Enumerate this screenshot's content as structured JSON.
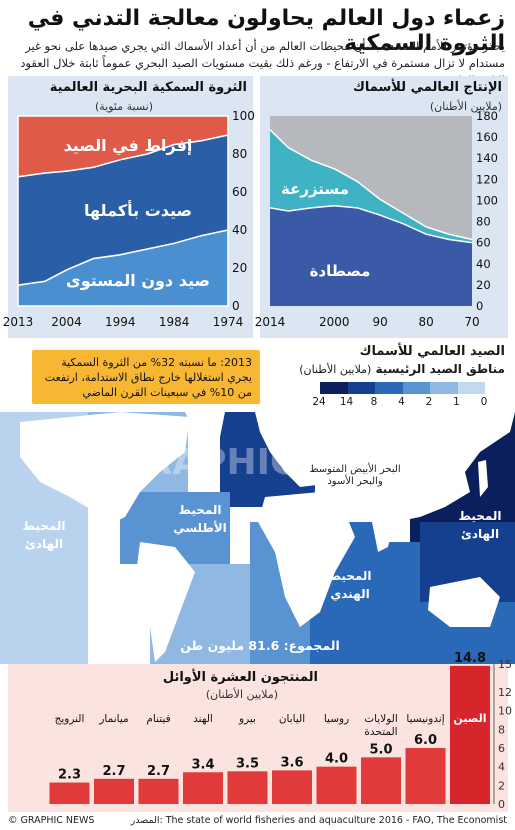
{
  "header": {
    "title": "زعماء دول العالم يحاولون معالجة التدني في الثروة السمكية",
    "subtitle": "يحذر مؤتمر للأمم المتحدة بشأن محيطات العالم من أن أعداد الأسماك التي يجري صيدها على نحو غير مستدام لا تزال مستمرة في الارتفاع - ورغم ذلك بقيت مستويات الصيد البحري عموماً ثابتة خلال العقود الثلاثة الماضية"
  },
  "left_panel": {
    "title": "الثروة السمكية البحرية العالمية",
    "unit": "(نسبة مئوية)",
    "label_over": "إفراط في الصيد",
    "label_full": "صيدت بأكملها",
    "label_under": "صيد دون المستوى"
  },
  "right_panel": {
    "title": "الإنتاج العالمي للأسماك",
    "unit": "(ملايين الأطنان)",
    "label_farmed": "مستزرعة",
    "label_caught": "مصطادة"
  },
  "callout": {
    "text": "2013: ما نسبته 32% من الثروة السمكية يجري استغلالها خارج نطاق الاستدامة، ارتفعت من 10% في سبعينات القرن الماضي"
  },
  "map": {
    "title": "الصيد العالمي للأسماك",
    "subtitle": "مناطق الصيد الرئيسية",
    "unit": "(ملايين الأطنان)",
    "legend_ticks": [
      "24",
      "14",
      "8",
      "4",
      "2",
      "1",
      "0"
    ],
    "legend_colors": [
      "#0b1f5c",
      "#153f8f",
      "#2a68b8",
      "#5a93d2",
      "#8fb8e3",
      "#c3d9f0"
    ],
    "label_pacific_east": "المحيط\nالهادئ",
    "label_atlantic": "المحيط\nالأطلسي",
    "label_med": "البحر الأبيض المتوسط\nوالبحر الأسود",
    "label_indian": "المحيط\nالهندي",
    "label_pacific_west": "المحيط\nالهادئ",
    "total": "المجموع: 81.6 مليون طن",
    "watermark": "GRAPHIC NEWS"
  },
  "bottom_chart": {
    "title": "المنتجون العشرة الأوائل",
    "unit": "(ملايين الأطنان)"
  },
  "footer": {
    "left": "© GRAPHIC NEWS",
    "right": "المصدر: The state of world fisheries and aquaculture 2016 - FAO, The Economist"
  },
  "chart_data": [
    {
      "type": "area",
      "title": "الثروة السمكية البحرية العالمية",
      "ylabel": "(نسبة مئوية)",
      "x": [
        1974,
        1979,
        1984,
        1989,
        1994,
        1999,
        2004,
        2008,
        2013
      ],
      "x_ticks": [
        "1974",
        "1984",
        "1994",
        "2004",
        "2013"
      ],
      "ylim": [
        0,
        100
      ],
      "y_ticks": [
        "0",
        "20",
        "40",
        "60",
        "80",
        "100"
      ],
      "series": [
        {
          "name": "صيد دون المستوى",
          "values": [
            40,
            37,
            33,
            30,
            27,
            25,
            19,
            13,
            11
          ]
        },
        {
          "name": "صيدت بأكملها",
          "values": [
            50,
            50,
            52,
            50,
            50,
            48,
            52,
            57,
            57
          ]
        },
        {
          "name": "إفراط في الصيد",
          "values": [
            10,
            13,
            15,
            20,
            23,
            27,
            29,
            30,
            32
          ]
        }
      ]
    },
    {
      "type": "area",
      "title": "الإنتاج العالمي للأسماك",
      "ylabel": "(ملايين الأطنان)",
      "x": [
        1970,
        1975,
        1980,
        1985,
        1990,
        1995,
        2000,
        2005,
        2010,
        2014
      ],
      "x_ticks": [
        "70",
        "80",
        "90",
        "2000",
        "2014"
      ],
      "ylim": [
        0,
        180
      ],
      "y_ticks": [
        "0",
        "20",
        "40",
        "60",
        "80",
        "100",
        "120",
        "140",
        "160",
        "180"
      ],
      "series": [
        {
          "name": "مصطادة",
          "values": [
            60,
            63,
            68,
            78,
            86,
            93,
            95,
            93,
            90,
            93
          ]
        },
        {
          "name": "مستزرعة",
          "values": [
            3,
            5,
            7,
            10,
            15,
            25,
            35,
            45,
            60,
            74
          ]
        }
      ]
    },
    {
      "type": "bar",
      "title": "المنتجون العشرة الأوائل",
      "ylabel": "(ملايين الأطنان)",
      "categories": [
        "الصين",
        "إندونيسيا",
        "الولايات المتحدة",
        "روسيا",
        "اليابان",
        "بيرو",
        "الهند",
        "فيتنام",
        "ميانمار",
        "النرويج"
      ],
      "values": [
        14.8,
        6.0,
        5.0,
        4.0,
        3.6,
        3.5,
        3.4,
        2.7,
        2.7,
        2.3
      ],
      "value_labels": [
        "14.8",
        "6.0",
        "5.0",
        "4.0",
        "3.6",
        "3.5",
        "3.4",
        "2.7",
        "2.7",
        "2.3"
      ],
      "ylim": [
        0,
        15
      ],
      "y_ticks": [
        "0",
        "2",
        "4",
        "6",
        "8",
        "10",
        "12",
        "15"
      ],
      "colors": {
        "highlight": "#d7262b",
        "bar": "#e03a3a"
      }
    }
  ]
}
